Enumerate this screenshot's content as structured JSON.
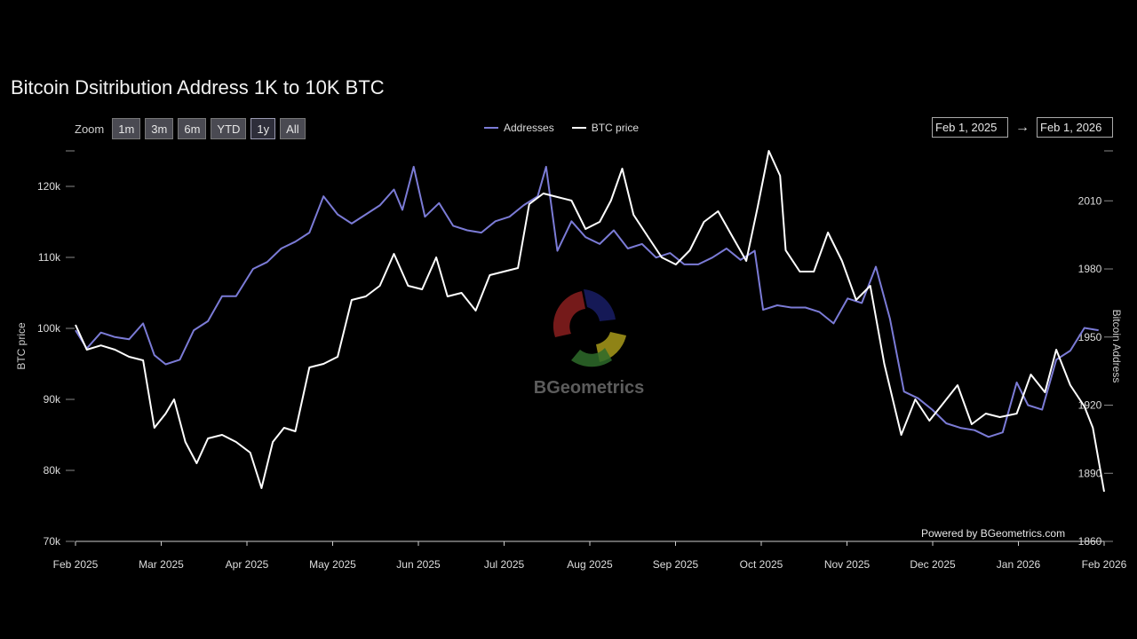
{
  "title": "Bitcoin Dsitribution Address 1K to 10K BTC",
  "zoom": {
    "label": "Zoom",
    "buttons": [
      "1m",
      "3m",
      "6m",
      "YTD",
      "1y",
      "All"
    ],
    "selected": "1y"
  },
  "legend": [
    {
      "name": "Addresses",
      "color": "#7b7bd6"
    },
    {
      "name": "BTC price",
      "color": "#ffffff"
    }
  ],
  "range": {
    "from": "Feb 1, 2025",
    "arrow": "→",
    "to": "Feb 1, 2026"
  },
  "watermark": "BGeometrics",
  "credit": "Powered by BGeometrics.com",
  "colors": {
    "background": "#000000",
    "addresses": "#7b7bd6",
    "price": "#ffffff",
    "axis": "#cccccc"
  },
  "chart_data": {
    "type": "line",
    "ylabel_left": "BTC price",
    "ylabel_right": "Bitcoin Address",
    "x_ticks": [
      "Feb 2025",
      "Mar 2025",
      "Apr 2025",
      "May 2025",
      "Jun 2025",
      "Jul 2025",
      "Aug 2025",
      "Sep 2025",
      "Oct 2025",
      "Nov 2025",
      "Dec 2025",
      "Jan 2026",
      "Feb 2026"
    ],
    "y_left_ticks": [
      "70k",
      "80k",
      "90k",
      "100k",
      "110k",
      "120k"
    ],
    "y_left_range": [
      70000,
      125000
    ],
    "y_right_ticks": [
      "1860",
      "1890",
      "1920",
      "1950",
      "1980",
      "2010"
    ],
    "y_right_range": [
      1860,
      2032
    ],
    "x_range": [
      "2025-02-01",
      "2026-02-01"
    ],
    "series": [
      {
        "name": "Addresses",
        "axis": "right",
        "points": [
          [
            "2025-02-01",
            1953
          ],
          [
            "2025-02-05",
            1945
          ],
          [
            "2025-02-10",
            1952
          ],
          [
            "2025-02-15",
            1950
          ],
          [
            "2025-02-20",
            1949
          ],
          [
            "2025-02-25",
            1956
          ],
          [
            "2025-03-01",
            1942
          ],
          [
            "2025-03-05",
            1938
          ],
          [
            "2025-03-10",
            1940
          ],
          [
            "2025-03-15",
            1953
          ],
          [
            "2025-03-20",
            1957
          ],
          [
            "2025-03-25",
            1968
          ],
          [
            "2025-03-30",
            1968
          ],
          [
            "2025-04-05",
            1980
          ],
          [
            "2025-04-10",
            1983
          ],
          [
            "2025-04-15",
            1989
          ],
          [
            "2025-04-20",
            1992
          ],
          [
            "2025-04-25",
            1996
          ],
          [
            "2025-04-30",
            2012
          ],
          [
            "2025-05-05",
            2004
          ],
          [
            "2025-05-10",
            2000
          ],
          [
            "2025-05-15",
            2004
          ],
          [
            "2025-05-20",
            2008
          ],
          [
            "2025-05-25",
            2015
          ],
          [
            "2025-05-28",
            2006
          ],
          [
            "2025-06-01",
            2025
          ],
          [
            "2025-06-05",
            2003
          ],
          [
            "2025-06-10",
            2009
          ],
          [
            "2025-06-15",
            1999
          ],
          [
            "2025-06-20",
            1997
          ],
          [
            "2025-06-25",
            1996
          ],
          [
            "2025-06-30",
            2001
          ],
          [
            "2025-07-05",
            2003
          ],
          [
            "2025-07-10",
            2008
          ],
          [
            "2025-07-15",
            2012
          ],
          [
            "2025-07-18",
            2025
          ],
          [
            "2025-07-22",
            1988
          ],
          [
            "2025-07-27",
            2001
          ],
          [
            "2025-08-01",
            1994
          ],
          [
            "2025-08-06",
            1991
          ],
          [
            "2025-08-11",
            1997
          ],
          [
            "2025-08-16",
            1989
          ],
          [
            "2025-08-21",
            1991
          ],
          [
            "2025-08-26",
            1985
          ],
          [
            "2025-08-31",
            1987
          ],
          [
            "2025-09-05",
            1982
          ],
          [
            "2025-09-10",
            1982
          ],
          [
            "2025-09-15",
            1985
          ],
          [
            "2025-09-20",
            1989
          ],
          [
            "2025-09-25",
            1984
          ],
          [
            "2025-09-30",
            1988
          ],
          [
            "2025-10-03",
            1962
          ],
          [
            "2025-10-08",
            1964
          ],
          [
            "2025-10-13",
            1963
          ],
          [
            "2025-10-18",
            1963
          ],
          [
            "2025-10-23",
            1961
          ],
          [
            "2025-10-28",
            1956
          ],
          [
            "2025-11-02",
            1967
          ],
          [
            "2025-11-07",
            1965
          ],
          [
            "2025-11-12",
            1981
          ],
          [
            "2025-11-17",
            1958
          ],
          [
            "2025-11-22",
            1926
          ],
          [
            "2025-11-27",
            1923
          ],
          [
            "2025-12-02",
            1918
          ],
          [
            "2025-12-07",
            1912
          ],
          [
            "2025-12-12",
            1910
          ],
          [
            "2025-12-17",
            1909
          ],
          [
            "2025-12-22",
            1906
          ],
          [
            "2025-12-27",
            1908
          ],
          [
            "2026-01-01",
            1930
          ],
          [
            "2026-01-05",
            1920
          ],
          [
            "2026-01-10",
            1918
          ],
          [
            "2026-01-15",
            1940
          ],
          [
            "2026-01-20",
            1944
          ],
          [
            "2026-01-25",
            1954
          ],
          [
            "2026-01-30",
            1953
          ]
        ]
      },
      {
        "name": "BTC price",
        "axis": "left",
        "points": [
          [
            "2025-02-01",
            100500
          ],
          [
            "2025-02-05",
            97000
          ],
          [
            "2025-02-10",
            97600
          ],
          [
            "2025-02-15",
            97000
          ],
          [
            "2025-02-20",
            96000
          ],
          [
            "2025-02-25",
            95500
          ],
          [
            "2025-03-01",
            86000
          ],
          [
            "2025-03-05",
            88000
          ],
          [
            "2025-03-08",
            90000
          ],
          [
            "2025-03-12",
            84000
          ],
          [
            "2025-03-16",
            81000
          ],
          [
            "2025-03-20",
            84500
          ],
          [
            "2025-03-25",
            85000
          ],
          [
            "2025-03-30",
            84000
          ],
          [
            "2025-04-04",
            82500
          ],
          [
            "2025-04-08",
            77500
          ],
          [
            "2025-04-12",
            84000
          ],
          [
            "2025-04-16",
            86000
          ],
          [
            "2025-04-20",
            85500
          ],
          [
            "2025-04-25",
            94500
          ],
          [
            "2025-04-30",
            95000
          ],
          [
            "2025-05-05",
            96000
          ],
          [
            "2025-05-10",
            104000
          ],
          [
            "2025-05-15",
            104500
          ],
          [
            "2025-05-20",
            106000
          ],
          [
            "2025-05-25",
            110500
          ],
          [
            "2025-05-30",
            106000
          ],
          [
            "2025-06-04",
            105500
          ],
          [
            "2025-06-09",
            110000
          ],
          [
            "2025-06-13",
            104500
          ],
          [
            "2025-06-18",
            105000
          ],
          [
            "2025-06-23",
            102500
          ],
          [
            "2025-06-28",
            107500
          ],
          [
            "2025-07-03",
            108000
          ],
          [
            "2025-07-08",
            108500
          ],
          [
            "2025-07-12",
            117500
          ],
          [
            "2025-07-17",
            119000
          ],
          [
            "2025-07-22",
            118500
          ],
          [
            "2025-07-27",
            118000
          ],
          [
            "2025-08-01",
            114000
          ],
          [
            "2025-08-06",
            115000
          ],
          [
            "2025-08-10",
            118000
          ],
          [
            "2025-08-14",
            122500
          ],
          [
            "2025-08-18",
            116000
          ],
          [
            "2025-08-23",
            113000
          ],
          [
            "2025-08-28",
            110000
          ],
          [
            "2025-09-02",
            109000
          ],
          [
            "2025-09-07",
            111000
          ],
          [
            "2025-09-12",
            115000
          ],
          [
            "2025-09-17",
            116500
          ],
          [
            "2025-09-22",
            113000
          ],
          [
            "2025-09-27",
            109500
          ],
          [
            "2025-10-01",
            117000
          ],
          [
            "2025-10-05",
            125000
          ],
          [
            "2025-10-09",
            121500
          ],
          [
            "2025-10-11",
            111000
          ],
          [
            "2025-10-16",
            108000
          ],
          [
            "2025-10-21",
            108000
          ],
          [
            "2025-10-26",
            113500
          ],
          [
            "2025-10-31",
            109500
          ],
          [
            "2025-11-05",
            104000
          ],
          [
            "2025-11-10",
            106000
          ],
          [
            "2025-11-15",
            95000
          ],
          [
            "2025-11-21",
            85000
          ],
          [
            "2025-11-26",
            90000
          ],
          [
            "2025-12-01",
            87000
          ],
          [
            "2025-12-06",
            89500
          ],
          [
            "2025-12-11",
            92000
          ],
          [
            "2025-12-16",
            86500
          ],
          [
            "2025-12-21",
            88000
          ],
          [
            "2025-12-26",
            87500
          ],
          [
            "2026-01-01",
            88000
          ],
          [
            "2026-01-06",
            93500
          ],
          [
            "2026-01-11",
            91000
          ],
          [
            "2026-01-15",
            97000
          ],
          [
            "2026-01-20",
            92000
          ],
          [
            "2026-01-25",
            89000
          ],
          [
            "2026-01-28",
            86000
          ],
          [
            "2026-02-01",
            77000
          ]
        ]
      }
    ]
  }
}
